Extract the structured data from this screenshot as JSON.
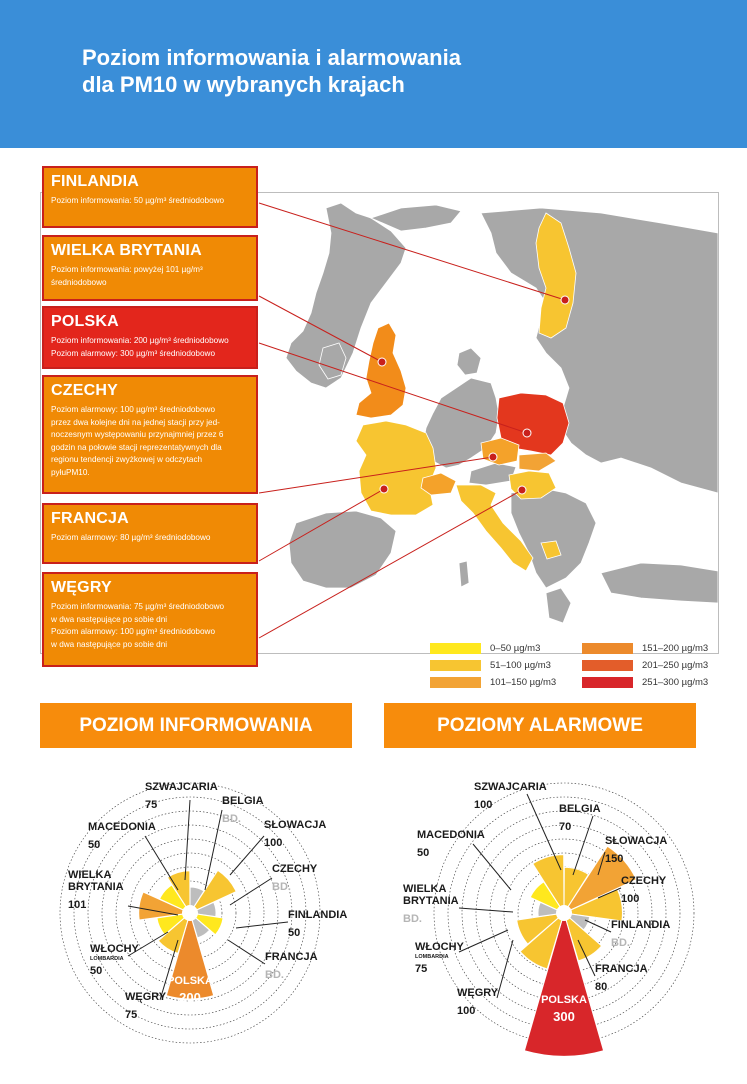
{
  "header": {
    "title_line1": "Poziom informowania i alarmowania",
    "title_line2": "dla PM10 w wybranych krajach"
  },
  "colors": {
    "header_bg": "#3a8ed8",
    "box_orange": "#f08a05",
    "box_red": "#e3261c",
    "box_border": "#c8201c",
    "banner": "#f78c0c",
    "land_gray": "#a8a8a8",
    "poland": "#e3371e",
    "uk": "#f28c1a",
    "czech_swiss": "#f4a22a",
    "yellow": "#f7c531"
  },
  "boxes": [
    {
      "country": "FINLANDIA",
      "lines": [
        "Poziom informowania: 50 µg/m³ średniodobowo"
      ]
    },
    {
      "country": "WIELKA BRYTANIA",
      "lines": [
        "Poziom informowania: powyżej 101 µg/m³",
        "średniodobowo"
      ]
    },
    {
      "country": "POLSKA",
      "lines": [
        "Poziom informowania: 200 µg/m³ średniodobowo",
        "Poziom alarmowy: 300 µg/m³ średniodobowo"
      ]
    },
    {
      "country": "CZECHY",
      "lines": [
        "Poziom alarmowy: 100 µg/m³ średniodobowo",
        "przez dwa kolejne dni na jednej stacji przy jed-",
        "noczesnym występowaniu przynajmniej przez 6",
        "godzin na połowie stacji reprezentatywnych dla",
        "regionu tendencji zwyżkowej w odczytach",
        "pyłuPM10."
      ]
    },
    {
      "country": "FRANCJA",
      "lines": [
        "Poziom alarmowy: 80 µg/m³ średniodobowo"
      ]
    },
    {
      "country": "WĘGRY",
      "lines": [
        "Poziom informowania: 75 µg/m³ średniodobowo",
        "w dwa następujące po sobie dni",
        "Poziom alarmowy: 100 µg/m³ średniodobowo",
        "w dwa następujące po sobie dni"
      ]
    }
  ],
  "legend": [
    {
      "label": "0–50 µg/m3",
      "color": "#ffe81e"
    },
    {
      "label": "51–100 µg/m3",
      "color": "#f7c531"
    },
    {
      "label": "101–150 µg/m3",
      "color": "#f2a335"
    },
    {
      "label": "151–200 µg/m3",
      "color": "#ec8a2c"
    },
    {
      "label": "201–250 µg/m3",
      "color": "#e35d2a"
    },
    {
      "label": "251–300 µg/m3",
      "color": "#d8262a"
    }
  ],
  "banners": {
    "info": "POZIOM INFORMOWANIA",
    "alarm": "POZIOMY ALARMOWE"
  },
  "chart_data": [
    {
      "type": "polar-area",
      "title": "POZIOM INFORMOWANIA",
      "unit": "µg/m³",
      "categories": [
        {
          "name": "SZWAJCARIA",
          "label": "75",
          "value": 75,
          "sub": ""
        },
        {
          "name": "BELGIA",
          "label": "BD.",
          "value": null,
          "sub": ""
        },
        {
          "name": "SŁOWACJA",
          "label": "100",
          "value": 100,
          "sub": ""
        },
        {
          "name": "CZECHY",
          "label": "BD.",
          "value": null,
          "sub": ""
        },
        {
          "name": "FINLANDIA",
          "label": "50",
          "value": 50,
          "sub": ""
        },
        {
          "name": "FRANCJA",
          "label": "BD.",
          "value": null,
          "sub": ""
        },
        {
          "name": "POLSKA",
          "label": "200",
          "value": 200,
          "sub": ""
        },
        {
          "name": "WĘGRY",
          "label": "75",
          "value": 75,
          "sub": ""
        },
        {
          "name": "WŁOCHY",
          "label": "50",
          "value": 50,
          "sub": "LOMBARDIA"
        },
        {
          "name": "WIELKA BRYTANIA",
          "label": "101",
          "value": 101,
          "sub": ""
        },
        {
          "name": "MACEDONIA",
          "label": "50",
          "value": 50,
          "sub": ""
        }
      ]
    },
    {
      "type": "polar-area",
      "title": "POZIOMY ALARMOWE",
      "unit": "µg/m³",
      "categories": [
        {
          "name": "SZWAJCARIA",
          "label": "100",
          "value": 100,
          "sub": ""
        },
        {
          "name": "BELGIA",
          "label": "70",
          "value": 70,
          "sub": ""
        },
        {
          "name": "SŁOWACJA",
          "label": "150",
          "value": 150,
          "sub": ""
        },
        {
          "name": "CZECHY",
          "label": "100",
          "value": 100,
          "sub": ""
        },
        {
          "name": "FINLANDIA",
          "label": "BD.",
          "value": null,
          "sub": ""
        },
        {
          "name": "FRANCJA",
          "label": "80",
          "value": 80,
          "sub": ""
        },
        {
          "name": "POLSKA",
          "label": "300",
          "value": 300,
          "sub": ""
        },
        {
          "name": "WĘGRY",
          "label": "100",
          "value": 100,
          "sub": ""
        },
        {
          "name": "WŁOCHY",
          "label": "75",
          "value": 75,
          "sub": "LOMBARDIA"
        },
        {
          "name": "WIELKA BRYTANIA",
          "label": "BD.",
          "value": null,
          "sub": ""
        },
        {
          "name": "MACEDONIA",
          "label": "50",
          "value": 50,
          "sub": ""
        }
      ]
    }
  ]
}
